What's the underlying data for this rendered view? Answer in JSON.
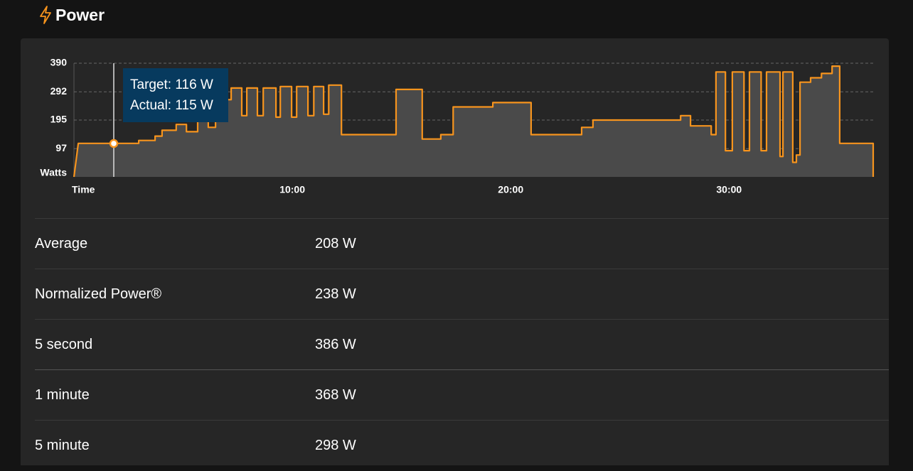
{
  "header": {
    "title": "Power"
  },
  "chart_data": {
    "type": "area",
    "x": [
      0,
      12,
      178,
      178,
      223,
      223,
      242,
      242,
      281,
      281,
      309,
      309,
      340,
      340,
      369,
      369,
      389,
      389,
      432,
      432,
      461,
      461,
      475,
      475,
      504,
      504,
      520,
      520,
      555,
      555,
      567,
      567,
      598,
      598,
      612,
      612,
      643,
      643,
      659,
      659,
      686,
      686,
      700,
      700,
      735,
      735,
      885,
      885,
      957,
      957,
      1008,
      1008,
      1042,
      1042,
      1151,
      1151,
      1256,
      1256,
      1395,
      1395,
      1426,
      1426,
      1667,
      1667,
      1694,
      1694,
      1751,
      1751,
      1764,
      1764,
      1790,
      1790,
      1809,
      1809,
      1841,
      1841,
      1856,
      1856,
      1888,
      1888,
      1903,
      1903,
      1940,
      1940,
      1948,
      1948,
      1975,
      1975,
      1985,
      1985,
      1995,
      1995,
      2024,
      2024,
      2054,
      2054,
      2083,
      2083,
      2104,
      2104,
      2196,
      2196
    ],
    "values": [
      0,
      115,
      115,
      125,
      125,
      140,
      140,
      160,
      160,
      180,
      180,
      155,
      155,
      250,
      250,
      170,
      170,
      265,
      265,
      305,
      305,
      210,
      210,
      305,
      305,
      210,
      210,
      305,
      305,
      205,
      205,
      310,
      310,
      205,
      205,
      310,
      310,
      210,
      210,
      310,
      310,
      215,
      215,
      315,
      315,
      145,
      145,
      300,
      300,
      130,
      130,
      145,
      145,
      240,
      240,
      255,
      255,
      145,
      145,
      170,
      170,
      195,
      195,
      210,
      210,
      175,
      175,
      145,
      145,
      360,
      360,
      90,
      90,
      360,
      360,
      90,
      90,
      360,
      360,
      90,
      90,
      360,
      360,
      70,
      70,
      360,
      360,
      50,
      50,
      75,
      75,
      325,
      325,
      340,
      340,
      355,
      355,
      380,
      380,
      115,
      115,
      0
    ],
    "color": "#f7941d",
    "fill": "#4a4a4a",
    "xlim": [
      0,
      2196
    ],
    "xticks": [
      {
        "value": 600,
        "label": "10:00"
      },
      {
        "value": 1200,
        "label": "20:00"
      },
      {
        "value": 1800,
        "label": "30:00"
      }
    ],
    "x_label": "Time",
    "ylim": [
      0,
      390
    ],
    "yticks": [
      97,
      195,
      292,
      390
    ],
    "y_label": "Watts",
    "grid": true
  },
  "tooltip": {
    "target": "Target: 116 W",
    "actual": "Actual: 115 W"
  },
  "stats": {
    "rows": [
      [
        "Average",
        "208 W"
      ],
      [
        "Normalized Power®",
        "238 W"
      ],
      [
        "5 second",
        "386 W"
      ],
      [
        "1 minute",
        "368 W"
      ],
      [
        "5 minute",
        "298 W"
      ]
    ]
  }
}
